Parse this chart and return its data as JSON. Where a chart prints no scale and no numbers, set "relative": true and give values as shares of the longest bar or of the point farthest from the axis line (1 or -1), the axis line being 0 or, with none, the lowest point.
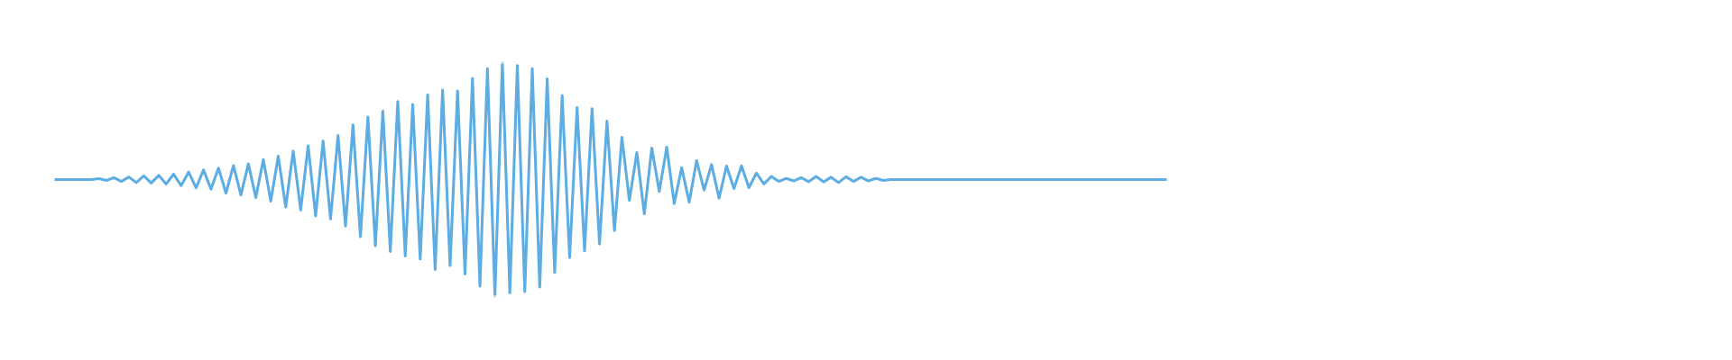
{
  "chart_data": {
    "type": "line",
    "relative": true,
    "color": "#5dade2",
    "categories": [
      null,
      null,
      null,
      null,
      null,
      null,
      null,
      null,
      null,
      null,
      null,
      null,
      null,
      null,
      null,
      null,
      null,
      null,
      null,
      null,
      null,
      null,
      null,
      null,
      null,
      null,
      null,
      null,
      null,
      null,
      null,
      null,
      null,
      null,
      null,
      null,
      null,
      null,
      null,
      null,
      null,
      null,
      null,
      null,
      null,
      null,
      null,
      null,
      null,
      null,
      null,
      null,
      null,
      null,
      null,
      null,
      null,
      null,
      null,
      null,
      null,
      null,
      null,
      null,
      null,
      null,
      null,
      null,
      null,
      null,
      null,
      null,
      null,
      null,
      null,
      null,
      null,
      null,
      null,
      null,
      null,
      null,
      null,
      null,
      null,
      null,
      null,
      null,
      null,
      null,
      null,
      null,
      null,
      null,
      null,
      null,
      null,
      null,
      null,
      null,
      null,
      null,
      null,
      null,
      null,
      null,
      null,
      null,
      null,
      null,
      null,
      null,
      null,
      null,
      null,
      null,
      null,
      null,
      null,
      null,
      null,
      null,
      null,
      null,
      null,
      null,
      null,
      null,
      null,
      null,
      null,
      null,
      null,
      null,
      null,
      null,
      null,
      null,
      null,
      null,
      null,
      null,
      null,
      null,
      null,
      null,
      null,
      null,
      null,
      null
    ],
    "values": [
      0.5,
      0.5,
      0.5,
      0.5,
      0.5,
      0.5,
      0.504,
      0.496,
      0.508,
      0.492,
      0.511,
      0.487,
      0.516,
      0.485,
      0.518,
      0.481,
      0.523,
      0.474,
      0.532,
      0.465,
      0.541,
      0.459,
      0.549,
      0.442,
      0.56,
      0.434,
      0.567,
      0.423,
      0.586,
      0.407,
      0.6,
      0.382,
      0.622,
      0.369,
      0.645,
      0.344,
      0.665,
      0.331,
      0.689,
      0.301,
      0.734,
      0.255,
      0.768,
      0.216,
      0.793,
      0.191,
      0.835,
      0.172,
      0.822,
      0.159,
      0.864,
      0.114,
      0.884,
      0.131,
      0.88,
      0.095,
      0.934,
      0.043,
      0.976,
      0,
      1,
      0.014,
      0.989,
      0.019,
      0.976,
      0.039,
      0.932,
      0.101,
      0.86,
      0.165,
      0.809,
      0.194,
      0.804,
      0.223,
      0.751,
      0.281,
      0.681,
      0.41,
      0.616,
      0.353,
      0.635,
      0.449,
      0.639,
      0.397,
      0.551,
      0.403,
      0.581,
      0.455,
      0.564,
      0.42,
      0.558,
      0.461,
      0.559,
      0.465,
      0.528,
      0.481,
      0.513,
      0.492,
      0.505,
      0.494,
      0.508,
      0.491,
      0.513,
      0.49,
      0.51,
      0.487,
      0.512,
      0.492,
      0.51,
      0.494,
      0.505,
      0.496,
      0.5,
      0.5,
      0.5,
      0.5,
      0.5,
      0.5,
      0.5,
      0.5,
      0.5,
      0.5,
      0.5,
      0.5,
      0.5,
      0.5,
      0.5,
      0.5,
      0.5,
      0.5,
      0.5,
      0.5,
      0.5,
      0.5,
      0.5,
      0.5,
      0.5,
      0.5,
      0.5,
      0.5,
      0.5,
      0.5,
      0.5,
      0.5,
      0.5,
      0.5,
      0.5,
      0.5,
      0.5,
      0.5
    ]
  }
}
